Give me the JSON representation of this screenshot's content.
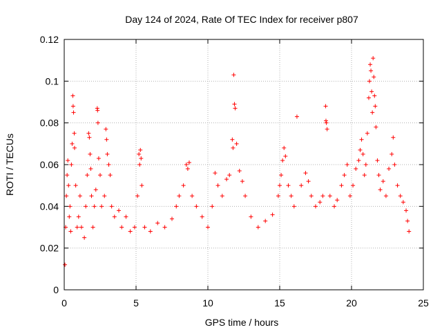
{
  "chart_data": {
    "type": "scatter",
    "title": "Day 124 of 2024, Rate Of TEC Index for receiver p807",
    "xlabel": "GPS time / hours",
    "ylabel": "ROTI / TECUs",
    "xlim": [
      0,
      25
    ],
    "ylim": [
      0,
      0.12
    ],
    "x_ticks": [
      "0",
      "5",
      "10",
      "15",
      "20",
      "25"
    ],
    "y_ticks": [
      "0",
      "0.02",
      "0.04",
      "0.06",
      "0.08",
      "0.1",
      "0.12"
    ],
    "grid": true,
    "marker": "plus",
    "series": [
      {
        "color": "#ff0000",
        "points": [
          [
            0.05,
            0.012
          ],
          [
            0.1,
            0.03
          ],
          [
            0.15,
            0.045
          ],
          [
            0.2,
            0.055
          ],
          [
            0.25,
            0.062
          ],
          [
            0.3,
            0.05
          ],
          [
            0.35,
            0.035
          ],
          [
            0.4,
            0.04
          ],
          [
            0.45,
            0.028
          ],
          [
            0.5,
            0.06
          ],
          [
            0.55,
            0.07
          ],
          [
            0.6,
            0.093
          ],
          [
            0.62,
            0.088
          ],
          [
            0.65,
            0.085
          ],
          [
            0.7,
            0.075
          ],
          [
            0.72,
            0.068
          ],
          [
            0.8,
            0.05
          ],
          [
            0.9,
            0.03
          ],
          [
            1.0,
            0.035
          ],
          [
            1.1,
            0.045
          ],
          [
            1.2,
            0.03
          ],
          [
            1.4,
            0.025
          ],
          [
            1.5,
            0.04
          ],
          [
            1.6,
            0.055
          ],
          [
            1.7,
            0.075
          ],
          [
            1.75,
            0.073
          ],
          [
            1.8,
            0.065
          ],
          [
            1.85,
            0.058
          ],
          [
            1.9,
            0.045
          ],
          [
            2.0,
            0.03
          ],
          [
            2.1,
            0.04
          ],
          [
            2.2,
            0.048
          ],
          [
            2.3,
            0.087
          ],
          [
            2.32,
            0.086
          ],
          [
            2.35,
            0.08
          ],
          [
            2.4,
            0.063
          ],
          [
            2.5,
            0.055
          ],
          [
            2.6,
            0.04
          ],
          [
            2.8,
            0.045
          ],
          [
            2.9,
            0.077
          ],
          [
            2.95,
            0.072
          ],
          [
            3.0,
            0.065
          ],
          [
            3.1,
            0.06
          ],
          [
            3.2,
            0.055
          ],
          [
            3.3,
            0.04
          ],
          [
            3.5,
            0.035
          ],
          [
            3.8,
            0.038
          ],
          [
            4.0,
            0.03
          ],
          [
            4.3,
            0.035
          ],
          [
            4.6,
            0.028
          ],
          [
            4.9,
            0.03
          ],
          [
            5.1,
            0.045
          ],
          [
            5.2,
            0.065
          ],
          [
            5.25,
            0.06
          ],
          [
            5.3,
            0.067
          ],
          [
            5.35,
            0.063
          ],
          [
            5.4,
            0.05
          ],
          [
            5.6,
            0.03
          ],
          [
            6.0,
            0.028
          ],
          [
            6.5,
            0.032
          ],
          [
            7.0,
            0.03
          ],
          [
            7.5,
            0.034
          ],
          [
            7.8,
            0.04
          ],
          [
            8.0,
            0.045
          ],
          [
            8.3,
            0.05
          ],
          [
            8.5,
            0.06
          ],
          [
            8.6,
            0.058
          ],
          [
            8.7,
            0.061
          ],
          [
            8.9,
            0.045
          ],
          [
            9.2,
            0.04
          ],
          [
            9.6,
            0.035
          ],
          [
            10.0,
            0.03
          ],
          [
            10.3,
            0.04
          ],
          [
            10.5,
            0.056
          ],
          [
            10.7,
            0.05
          ],
          [
            11.0,
            0.045
          ],
          [
            11.3,
            0.053
          ],
          [
            11.5,
            0.055
          ],
          [
            11.7,
            0.072
          ],
          [
            11.75,
            0.068
          ],
          [
            11.8,
            0.103
          ],
          [
            11.85,
            0.089
          ],
          [
            11.9,
            0.087
          ],
          [
            12.0,
            0.07
          ],
          [
            12.2,
            0.057
          ],
          [
            12.4,
            0.052
          ],
          [
            12.6,
            0.045
          ],
          [
            13.0,
            0.035
          ],
          [
            13.5,
            0.03
          ],
          [
            14.0,
            0.033
          ],
          [
            14.5,
            0.036
          ],
          [
            14.9,
            0.045
          ],
          [
            15.0,
            0.05
          ],
          [
            15.1,
            0.055
          ],
          [
            15.2,
            0.062
          ],
          [
            15.3,
            0.068
          ],
          [
            15.4,
            0.064
          ],
          [
            15.6,
            0.05
          ],
          [
            15.8,
            0.045
          ],
          [
            16.0,
            0.04
          ],
          [
            16.2,
            0.083
          ],
          [
            16.5,
            0.05
          ],
          [
            16.8,
            0.056
          ],
          [
            17.0,
            0.052
          ],
          [
            17.2,
            0.045
          ],
          [
            17.5,
            0.04
          ],
          [
            17.8,
            0.042
          ],
          [
            18.0,
            0.045
          ],
          [
            18.2,
            0.088
          ],
          [
            18.22,
            0.081
          ],
          [
            18.25,
            0.08
          ],
          [
            18.3,
            0.077
          ],
          [
            18.5,
            0.045
          ],
          [
            18.8,
            0.04
          ],
          [
            19.0,
            0.043
          ],
          [
            19.3,
            0.05
          ],
          [
            19.5,
            0.055
          ],
          [
            19.7,
            0.06
          ],
          [
            19.9,
            0.045
          ],
          [
            20.1,
            0.05
          ],
          [
            20.3,
            0.058
          ],
          [
            20.5,
            0.062
          ],
          [
            20.6,
            0.067
          ],
          [
            20.7,
            0.072
          ],
          [
            20.8,
            0.065
          ],
          [
            20.9,
            0.055
          ],
          [
            21.0,
            0.06
          ],
          [
            21.1,
            0.075
          ],
          [
            21.2,
            0.092
          ],
          [
            21.25,
            0.1
          ],
          [
            21.3,
            0.108
          ],
          [
            21.35,
            0.105
          ],
          [
            21.4,
            0.095
          ],
          [
            21.45,
            0.085
          ],
          [
            21.5,
            0.111
          ],
          [
            21.55,
            0.102
          ],
          [
            21.6,
            0.093
          ],
          [
            21.65,
            0.088
          ],
          [
            21.7,
            0.078
          ],
          [
            21.8,
            0.062
          ],
          [
            21.9,
            0.055
          ],
          [
            22.0,
            0.048
          ],
          [
            22.2,
            0.052
          ],
          [
            22.4,
            0.045
          ],
          [
            22.6,
            0.058
          ],
          [
            22.8,
            0.065
          ],
          [
            22.9,
            0.073
          ],
          [
            23.0,
            0.06
          ],
          [
            23.2,
            0.05
          ],
          [
            23.4,
            0.045
          ],
          [
            23.6,
            0.042
          ],
          [
            23.8,
            0.038
          ],
          [
            23.9,
            0.033
          ],
          [
            24.0,
            0.028
          ]
        ]
      }
    ]
  }
}
